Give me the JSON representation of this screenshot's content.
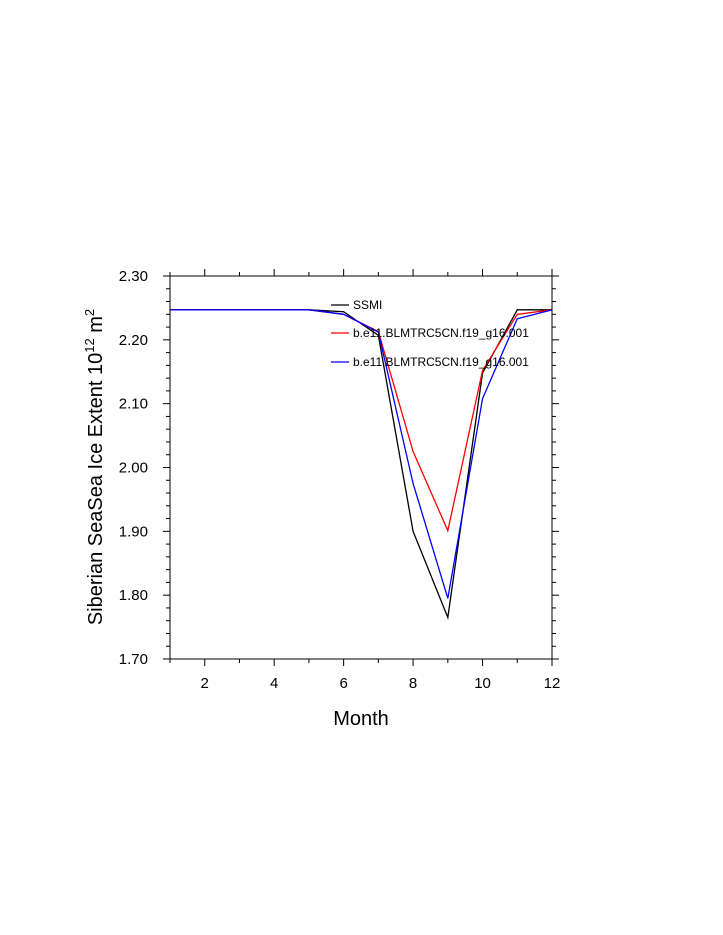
{
  "chart_data": {
    "type": "line",
    "title": "",
    "xlabel": "Month",
    "ylabel": {
      "main": "Siberian SeaSea Ice Extent 10",
      "sup1": "12",
      "unit": " m",
      "sup2": "2"
    },
    "xlim": [
      1,
      12
    ],
    "ylim": [
      1.7,
      2.3
    ],
    "x_ticks": [
      2,
      4,
      6,
      8,
      10,
      12
    ],
    "x_tick_labels": [
      "2",
      "4",
      "6",
      "8",
      "10",
      "12"
    ],
    "y_ticks": [
      1.7,
      1.8,
      1.9,
      2.0,
      2.1,
      2.2,
      2.3
    ],
    "y_tick_labels": [
      "1.70",
      "1.80",
      "1.90",
      "2.00",
      "2.10",
      "2.20",
      "2.30"
    ],
    "grid": false,
    "legend_position": "top-right inside",
    "x": [
      1,
      2,
      3,
      4,
      5,
      6,
      7,
      8,
      9,
      10,
      11,
      12
    ],
    "series": [
      {
        "name": "SSMI",
        "color": "#000000",
        "values": [
          2.247,
          2.247,
          2.247,
          2.247,
          2.247,
          2.244,
          2.207,
          1.9,
          1.765,
          2.148,
          2.247,
          2.247
        ]
      },
      {
        "name": "b.e11.BLMTRC5CN.f19_g16.001",
        "color": "#ff0000",
        "values": [
          2.247,
          2.247,
          2.247,
          2.247,
          2.247,
          2.24,
          2.213,
          2.025,
          1.901,
          2.152,
          2.24,
          2.247
        ]
      },
      {
        "name": "b.e11.BLMTRC5CN.f19_g16.001",
        "color": "#0000ff",
        "values": [
          2.247,
          2.247,
          2.247,
          2.247,
          2.247,
          2.24,
          2.212,
          1.975,
          1.795,
          2.108,
          2.233,
          2.247
        ]
      }
    ]
  }
}
